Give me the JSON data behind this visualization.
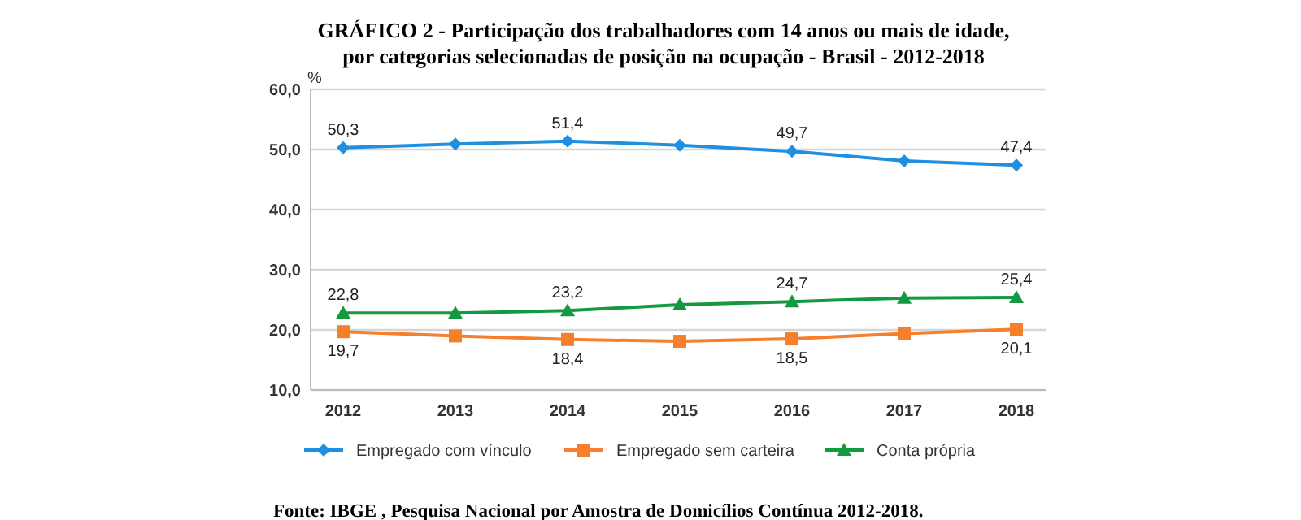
{
  "chart_data": {
    "type": "line",
    "title": "GRÁFICO 2 - Participação dos trabalhadores com 14 anos ou mais de idade,\npor categorias selecionadas de posição na ocupação - Brasil - 2012-2018",
    "ylabel": "%",
    "categories": [
      "2012",
      "2013",
      "2014",
      "2015",
      "2016",
      "2017",
      "2018"
    ],
    "series": [
      {
        "name": "Empregado com vínculo",
        "color": "#1e8fe1",
        "marker": "diamond",
        "values": [
          50.3,
          50.9,
          51.4,
          50.7,
          49.7,
          48.1,
          47.4
        ],
        "value_labels": [
          "50,3",
          null,
          "51,4",
          null,
          "49,7",
          null,
          "47,4"
        ]
      },
      {
        "name": "Empregado sem carteira",
        "color": "#f57f2a",
        "marker": "square",
        "values": [
          19.7,
          19.0,
          18.4,
          18.1,
          18.5,
          19.4,
          20.1
        ],
        "value_labels": [
          "19,7",
          null,
          "18,4",
          null,
          "18,5",
          null,
          "20,1"
        ]
      },
      {
        "name": "Conta própria",
        "color": "#13993f",
        "marker": "triangle",
        "values": [
          22.8,
          22.8,
          23.2,
          24.2,
          24.7,
          25.3,
          25.4
        ],
        "value_labels": [
          "22,8",
          null,
          "23,2",
          null,
          "24,7",
          null,
          "25,4"
        ]
      }
    ],
    "ylim": [
      10,
      60
    ],
    "yticks": [
      {
        "value": 10,
        "label": "10,0"
      },
      {
        "value": 20,
        "label": "20,0"
      },
      {
        "value": 30,
        "label": "30,0"
      },
      {
        "value": 40,
        "label": "40,0"
      },
      {
        "value": 50,
        "label": "50,0"
      },
      {
        "value": 60,
        "label": "60,0"
      }
    ],
    "grid": "y",
    "legend": "bottom",
    "line_style": "solid",
    "annotations": [
      "Fonte: IBGE , Pesquisa Nacional por Amostra de Domicílios Contínua 2012-2018."
    ]
  }
}
